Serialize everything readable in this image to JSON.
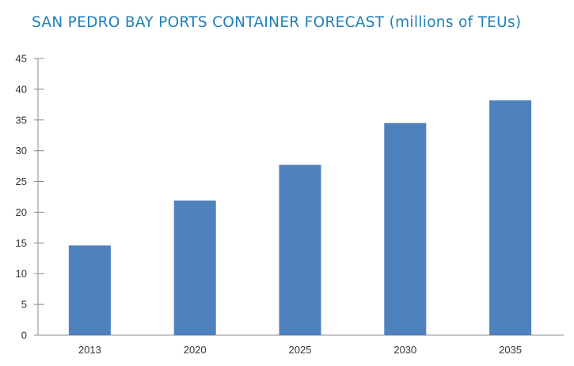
{
  "chart_data": {
    "type": "bar",
    "title": "SAN PEDRO BAY PORTS CONTAINER FORECAST (millions of TEUs)",
    "xlabel": "",
    "ylabel": "",
    "categories": [
      "2013",
      "2020",
      "2025",
      "2030",
      "2035"
    ],
    "values": [
      14.6,
      21.9,
      27.7,
      34.5,
      38.2
    ],
    "ylim": [
      0,
      45
    ],
    "yticks": [
      0,
      5,
      10,
      15,
      20,
      25,
      30,
      35,
      40,
      45
    ],
    "grid": false,
    "legend": "none",
    "bar_color": "#4f81bd",
    "axis_color": "#888888"
  }
}
